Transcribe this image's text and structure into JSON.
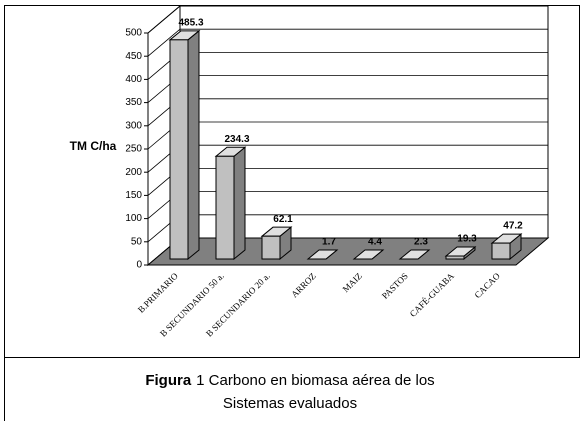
{
  "chart_data": {
    "type": "bar3d",
    "y_label": "TM C/ha",
    "categories": [
      "B.PRIMARIO",
      "B SECUNDARIO 50 a.",
      "B SECUNDARIO 20 a.",
      "ARROZ",
      "MAIZ",
      "PASTOS",
      "CAFÉ-GUABA",
      "CACAO"
    ],
    "values": [
      485.3,
      234.3,
      62.1,
      1.7,
      4.4,
      2.3,
      19.3,
      47.2
    ],
    "color": "#c0c0c0",
    "ylim": [
      0,
      500
    ],
    "yticks": [
      0,
      50,
      100,
      150,
      200,
      250,
      300,
      350,
      400,
      450,
      500
    ],
    "grid": true
  },
  "caption": {
    "label": "Figura",
    "line1": "1 Carbono en biomasa aérea de los",
    "line2": "Sistemas evaluados"
  }
}
